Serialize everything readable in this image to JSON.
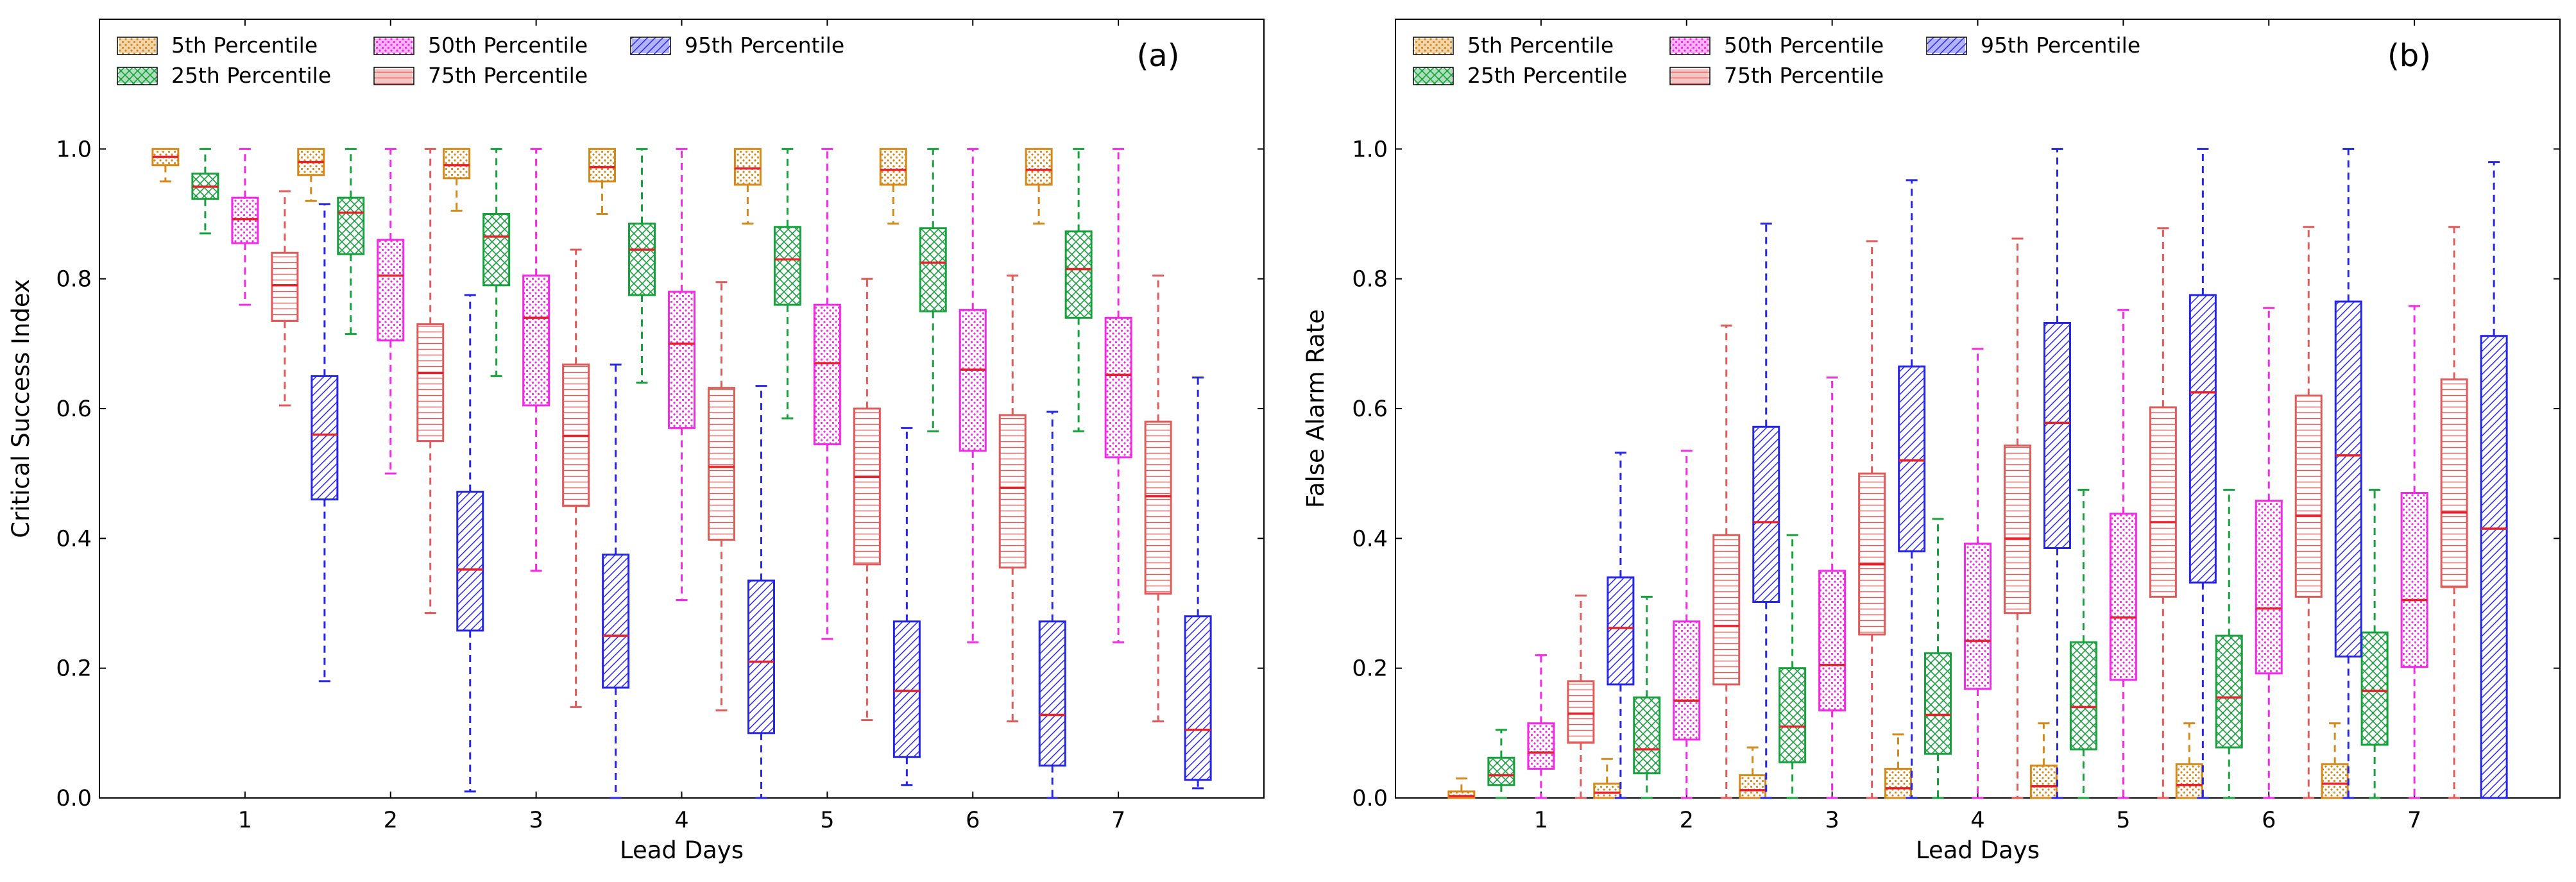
{
  "chart_data": [
    {
      "type": "box",
      "panel_label": "(a)",
      "title": "",
      "xlabel": "Lead Days",
      "ylabel": "Critical Success Index",
      "ylim": [
        0.0,
        1.2
      ],
      "yticks": [
        0.0,
        0.2,
        0.4,
        0.6,
        0.8,
        1.0
      ],
      "ytick_labels": [
        "0.0",
        "0.2",
        "0.4",
        "0.6",
        "0.8",
        "1.0"
      ],
      "categories": [
        "1",
        "2",
        "3",
        "4",
        "5",
        "6",
        "7"
      ],
      "legend_position": "top-left",
      "series": [
        {
          "name": "5th Percentile",
          "color": "#d4891a",
          "hatch": "dots",
          "boxes": [
            {
              "whislo": 0.95,
              "q1": 0.975,
              "med": 0.988,
              "q3": 1.0,
              "whishi": 1.0
            },
            {
              "whislo": 0.92,
              "q1": 0.96,
              "med": 0.98,
              "q3": 1.0,
              "whishi": 1.0
            },
            {
              "whislo": 0.905,
              "q1": 0.955,
              "med": 0.975,
              "q3": 1.0,
              "whishi": 1.0
            },
            {
              "whislo": 0.9,
              "q1": 0.95,
              "med": 0.972,
              "q3": 1.0,
              "whishi": 1.0
            },
            {
              "whislo": 0.885,
              "q1": 0.945,
              "med": 0.97,
              "q3": 1.0,
              "whishi": 1.0
            },
            {
              "whislo": 0.885,
              "q1": 0.945,
              "med": 0.968,
              "q3": 1.0,
              "whishi": 1.0
            },
            {
              "whislo": 0.885,
              "q1": 0.945,
              "med": 0.968,
              "q3": 1.0,
              "whishi": 1.0
            }
          ]
        },
        {
          "name": "25th Percentile",
          "color": "#17a13c",
          "hatch": "cross",
          "boxes": [
            {
              "whislo": 0.87,
              "q1": 0.923,
              "med": 0.942,
              "q3": 0.962,
              "whishi": 1.0
            },
            {
              "whislo": 0.715,
              "q1": 0.838,
              "med": 0.902,
              "q3": 0.925,
              "whishi": 1.0
            },
            {
              "whislo": 0.65,
              "q1": 0.79,
              "med": 0.865,
              "q3": 0.9,
              "whishi": 1.0
            },
            {
              "whislo": 0.64,
              "q1": 0.775,
              "med": 0.845,
              "q3": 0.885,
              "whishi": 1.0
            },
            {
              "whislo": 0.585,
              "q1": 0.76,
              "med": 0.83,
              "q3": 0.88,
              "whishi": 1.0
            },
            {
              "whislo": 0.565,
              "q1": 0.75,
              "med": 0.825,
              "q3": 0.878,
              "whishi": 1.0
            },
            {
              "whislo": 0.565,
              "q1": 0.74,
              "med": 0.815,
              "q3": 0.873,
              "whishi": 1.0
            }
          ]
        },
        {
          "name": "50th Percentile",
          "color": "#f229e6",
          "hatch": "dots",
          "boxes": [
            {
              "whislo": 0.76,
              "q1": 0.855,
              "med": 0.892,
              "q3": 0.925,
              "whishi": 1.0
            },
            {
              "whislo": 0.5,
              "q1": 0.705,
              "med": 0.805,
              "q3": 0.86,
              "whishi": 1.0
            },
            {
              "whislo": 0.35,
              "q1": 0.605,
              "med": 0.74,
              "q3": 0.805,
              "whishi": 1.0
            },
            {
              "whislo": 0.305,
              "q1": 0.57,
              "med": 0.7,
              "q3": 0.78,
              "whishi": 1.0
            },
            {
              "whislo": 0.245,
              "q1": 0.545,
              "med": 0.67,
              "q3": 0.76,
              "whishi": 1.0
            },
            {
              "whislo": 0.24,
              "q1": 0.535,
              "med": 0.66,
              "q3": 0.752,
              "whishi": 1.0
            },
            {
              "whislo": 0.24,
              "q1": 0.525,
              "med": 0.652,
              "q3": 0.74,
              "whishi": 1.0
            }
          ]
        },
        {
          "name": "75th Percentile",
          "color": "#e05a5a",
          "hatch": "horizontal",
          "boxes": [
            {
              "whislo": 0.605,
              "q1": 0.735,
              "med": 0.79,
              "q3": 0.84,
              "whishi": 0.935
            },
            {
              "whislo": 0.285,
              "q1": 0.55,
              "med": 0.655,
              "q3": 0.73,
              "whishi": 1.0
            },
            {
              "whislo": 0.14,
              "q1": 0.45,
              "med": 0.558,
              "q3": 0.668,
              "whishi": 0.845
            },
            {
              "whislo": 0.135,
              "q1": 0.398,
              "med": 0.51,
              "q3": 0.632,
              "whishi": 0.795
            },
            {
              "whislo": 0.12,
              "q1": 0.36,
              "med": 0.495,
              "q3": 0.6,
              "whishi": 0.8
            },
            {
              "whislo": 0.118,
              "q1": 0.355,
              "med": 0.478,
              "q3": 0.59,
              "whishi": 0.805
            },
            {
              "whislo": 0.118,
              "q1": 0.315,
              "med": 0.465,
              "q3": 0.58,
              "whishi": 0.805
            }
          ]
        },
        {
          "name": "95th Percentile",
          "color": "#2525e8",
          "hatch": "diagonal",
          "boxes": [
            {
              "whislo": 0.18,
              "q1": 0.46,
              "med": 0.56,
              "q3": 0.65,
              "whishi": 0.915
            },
            {
              "whislo": 0.01,
              "q1": 0.258,
              "med": 0.352,
              "q3": 0.472,
              "whishi": 0.775
            },
            {
              "whislo": 0.0,
              "q1": 0.17,
              "med": 0.25,
              "q3": 0.375,
              "whishi": 0.668
            },
            {
              "whislo": 0.0,
              "q1": 0.1,
              "med": 0.21,
              "q3": 0.335,
              "whishi": 0.635
            },
            {
              "whislo": 0.02,
              "q1": 0.063,
              "med": 0.165,
              "q3": 0.272,
              "whishi": 0.57
            },
            {
              "whislo": 0.0,
              "q1": 0.05,
              "med": 0.128,
              "q3": 0.272,
              "whishi": 0.595
            },
            {
              "whislo": 0.015,
              "q1": 0.028,
              "med": 0.105,
              "q3": 0.28,
              "whishi": 0.648
            }
          ]
        }
      ]
    },
    {
      "type": "box",
      "panel_label": "(b)",
      "title": "",
      "xlabel": "Lead Days",
      "ylabel": "False Alarm Rate",
      "ylim": [
        0.0,
        1.2
      ],
      "yticks": [
        0.0,
        0.2,
        0.4,
        0.6,
        0.8,
        1.0
      ],
      "ytick_labels": [
        "0.0",
        "0.2",
        "0.4",
        "0.6",
        "0.8",
        "1.0"
      ],
      "categories": [
        "1",
        "2",
        "3",
        "4",
        "5",
        "6",
        "7"
      ],
      "legend_position": "top-left",
      "series": [
        {
          "name": "5th Percentile",
          "color": "#d4891a",
          "hatch": "dots",
          "boxes": [
            {
              "whislo": 0.0,
              "q1": 0.0,
              "med": 0.003,
              "q3": 0.01,
              "whishi": 0.03
            },
            {
              "whislo": 0.0,
              "q1": 0.0,
              "med": 0.008,
              "q3": 0.022,
              "whishi": 0.06
            },
            {
              "whislo": 0.0,
              "q1": 0.0,
              "med": 0.012,
              "q3": 0.035,
              "whishi": 0.078
            },
            {
              "whislo": 0.0,
              "q1": 0.0,
              "med": 0.015,
              "q3": 0.045,
              "whishi": 0.098
            },
            {
              "whislo": 0.0,
              "q1": 0.0,
              "med": 0.018,
              "q3": 0.05,
              "whishi": 0.115
            },
            {
              "whislo": 0.0,
              "q1": 0.0,
              "med": 0.02,
              "q3": 0.052,
              "whishi": 0.115
            },
            {
              "whislo": 0.0,
              "q1": 0.0,
              "med": 0.022,
              "q3": 0.052,
              "whishi": 0.115
            }
          ]
        },
        {
          "name": "25th Percentile",
          "color": "#17a13c",
          "hatch": "cross",
          "boxes": [
            {
              "whislo": 0.0,
              "q1": 0.02,
              "med": 0.035,
              "q3": 0.062,
              "whishi": 0.105
            },
            {
              "whislo": 0.0,
              "q1": 0.038,
              "med": 0.075,
              "q3": 0.155,
              "whishi": 0.31
            },
            {
              "whislo": 0.0,
              "q1": 0.055,
              "med": 0.11,
              "q3": 0.2,
              "whishi": 0.405
            },
            {
              "whislo": 0.0,
              "q1": 0.068,
              "med": 0.128,
              "q3": 0.223,
              "whishi": 0.43
            },
            {
              "whislo": 0.0,
              "q1": 0.075,
              "med": 0.14,
              "q3": 0.24,
              "whishi": 0.475
            },
            {
              "whislo": 0.0,
              "q1": 0.078,
              "med": 0.155,
              "q3": 0.25,
              "whishi": 0.475
            },
            {
              "whislo": 0.0,
              "q1": 0.082,
              "med": 0.165,
              "q3": 0.255,
              "whishi": 0.475
            }
          ]
        },
        {
          "name": "50th Percentile",
          "color": "#f229e6",
          "hatch": "dots",
          "boxes": [
            {
              "whislo": 0.0,
              "q1": 0.045,
              "med": 0.07,
              "q3": 0.115,
              "whishi": 0.22
            },
            {
              "whislo": 0.0,
              "q1": 0.09,
              "med": 0.15,
              "q3": 0.272,
              "whishi": 0.535
            },
            {
              "whislo": 0.0,
              "q1": 0.135,
              "med": 0.205,
              "q3": 0.35,
              "whishi": 0.648
            },
            {
              "whislo": 0.0,
              "q1": 0.168,
              "med": 0.242,
              "q3": 0.392,
              "whishi": 0.692
            },
            {
              "whislo": 0.0,
              "q1": 0.182,
              "med": 0.278,
              "q3": 0.438,
              "whishi": 0.752
            },
            {
              "whislo": 0.0,
              "q1": 0.192,
              "med": 0.292,
              "q3": 0.458,
              "whishi": 0.755
            },
            {
              "whislo": 0.0,
              "q1": 0.202,
              "med": 0.305,
              "q3": 0.47,
              "whishi": 0.758
            }
          ]
        },
        {
          "name": "75th Percentile",
          "color": "#e05a5a",
          "hatch": "horizontal",
          "boxes": [
            {
              "whislo": 0.0,
              "q1": 0.085,
              "med": 0.13,
              "q3": 0.18,
              "whishi": 0.312
            },
            {
              "whislo": 0.0,
              "q1": 0.175,
              "med": 0.265,
              "q3": 0.405,
              "whishi": 0.728
            },
            {
              "whislo": 0.0,
              "q1": 0.252,
              "med": 0.36,
              "q3": 0.5,
              "whishi": 0.858
            },
            {
              "whislo": 0.0,
              "q1": 0.285,
              "med": 0.4,
              "q3": 0.543,
              "whishi": 0.862
            },
            {
              "whislo": 0.0,
              "q1": 0.31,
              "med": 0.425,
              "q3": 0.602,
              "whishi": 0.878
            },
            {
              "whislo": 0.0,
              "q1": 0.31,
              "med": 0.435,
              "q3": 0.62,
              "whishi": 0.88
            },
            {
              "whislo": 0.0,
              "q1": 0.325,
              "med": 0.44,
              "q3": 0.645,
              "whishi": 0.88
            }
          ]
        },
        {
          "name": "95th Percentile",
          "color": "#2525e8",
          "hatch": "diagonal",
          "boxes": [
            {
              "whislo": 0.0,
              "q1": 0.175,
              "med": 0.262,
              "q3": 0.34,
              "whishi": 0.532
            },
            {
              "whislo": 0.0,
              "q1": 0.302,
              "med": 0.425,
              "q3": 0.572,
              "whishi": 0.885
            },
            {
              "whislo": 0.0,
              "q1": 0.38,
              "med": 0.52,
              "q3": 0.665,
              "whishi": 0.952
            },
            {
              "whislo": 0.0,
              "q1": 0.385,
              "med": 0.578,
              "q3": 0.732,
              "whishi": 1.0
            },
            {
              "whislo": 0.0,
              "q1": 0.332,
              "med": 0.625,
              "q3": 0.775,
              "whishi": 1.0
            },
            {
              "whislo": 0.0,
              "q1": 0.218,
              "med": 0.528,
              "q3": 0.765,
              "whishi": 1.0
            },
            {
              "whislo": 0.0,
              "q1": 0.0,
              "med": 0.415,
              "q3": 0.712,
              "whishi": 0.98
            }
          ]
        }
      ]
    }
  ]
}
